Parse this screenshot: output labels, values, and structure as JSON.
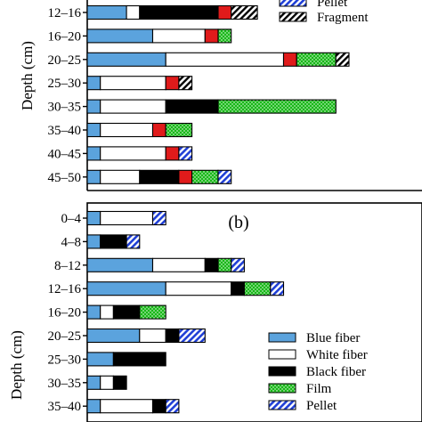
{
  "chart_data": [
    {
      "type": "bar",
      "orientation": "horizontal",
      "stacked": true,
      "panel_label": "",
      "ylabel": "Depth (cm)",
      "categories": [
        "12–16",
        "16–20",
        "20–25",
        "25–30",
        "30–35",
        "35–40",
        "40–45",
        "45–50"
      ],
      "series": [
        {
          "name": "Blue fiber",
          "values": [
            3,
            5,
            6,
            1,
            1,
            1,
            1,
            1
          ]
        },
        {
          "name": "White fiber",
          "values": [
            1,
            4,
            9,
            5,
            5,
            4,
            5,
            3
          ]
        },
        {
          "name": "Black fiber",
          "values": [
            6,
            0,
            0,
            0,
            4,
            0,
            0,
            3
          ]
        },
        {
          "name": "Red",
          "values": [
            1,
            1,
            1,
            1,
            0,
            1,
            1,
            1
          ]
        },
        {
          "name": "Film",
          "values": [
            0,
            1,
            3,
            0,
            9,
            2,
            0,
            2
          ]
        },
        {
          "name": "Pellet",
          "values": [
            0,
            0,
            0,
            0,
            0,
            0,
            1,
            1
          ]
        },
        {
          "name": "Fragment",
          "values": [
            2,
            0,
            1,
            1,
            0,
            0,
            0,
            0
          ]
        }
      ],
      "legend_entries": [
        "Pellet",
        "Fragment"
      ],
      "legend_position": "top-right",
      "xlim": [
        0,
        20
      ]
    },
    {
      "type": "bar",
      "orientation": "horizontal",
      "stacked": true,
      "panel_label": "(b)",
      "ylabel": "Depth (cm)",
      "categories": [
        "0–4",
        "4–8",
        "8–12",
        "12–16",
        "16–20",
        "20–25",
        "25–30",
        "30–35",
        "35–40"
      ],
      "series": [
        {
          "name": "Blue fiber",
          "values": [
            1,
            1,
            5,
            6,
            1,
            4,
            2,
            1,
            1
          ]
        },
        {
          "name": "White fiber",
          "values": [
            4,
            0,
            4,
            5,
            1,
            2,
            0,
            1,
            4
          ]
        },
        {
          "name": "Black fiber",
          "values": [
            0,
            2,
            1,
            1,
            2,
            1,
            4,
            1,
            1
          ]
        },
        {
          "name": "Film",
          "values": [
            0,
            0,
            1,
            2,
            2,
            0,
            0,
            0,
            0
          ]
        },
        {
          "name": "Pellet",
          "values": [
            1,
            1,
            1,
            1,
            0,
            2,
            0,
            0,
            1
          ]
        }
      ],
      "legend_entries": [
        "Blue fiber",
        "White fiber",
        "Black fiber",
        "Film",
        "Pellet"
      ],
      "legend_position": "bottom-right",
      "xlim": [
        0,
        20
      ]
    }
  ],
  "styles": {
    "Blue fiber": {
      "fill": "#5ba3dd",
      "pattern": "solid"
    },
    "White fiber": {
      "fill": "#ffffff",
      "pattern": "solid"
    },
    "Black fiber": {
      "fill": "#000000",
      "pattern": "solid"
    },
    "Red": {
      "fill": "#e01b1b",
      "pattern": "solid"
    },
    "Film": {
      "fill": "#18b818",
      "pattern": "dots"
    },
    "Pellet": {
      "fill": "#1f3fd6",
      "pattern": "hatch"
    },
    "Fragment": {
      "fill": "#000000",
      "pattern": "hatch"
    }
  }
}
